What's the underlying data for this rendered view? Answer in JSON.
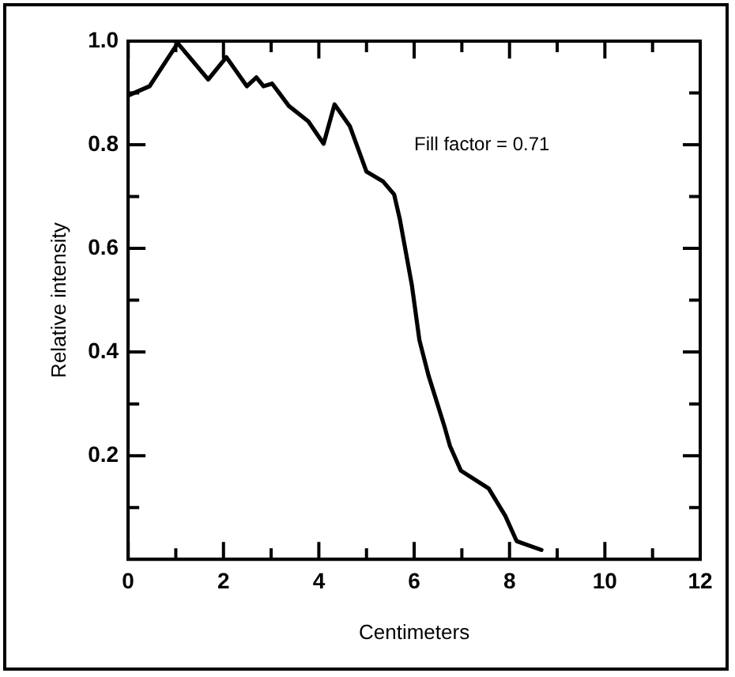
{
  "chart_data": {
    "type": "line",
    "xlabel": "Centimeters",
    "ylabel": "Relative intensity",
    "annotations": [
      "Fill factor = 0.71"
    ],
    "xlim": [
      0,
      12
    ],
    "ylim": [
      0,
      1
    ],
    "xticks": [
      0,
      {
        "value": 1,
        "label": null
      },
      2,
      {
        "value": 3,
        "label": null
      },
      4,
      {
        "value": 5,
        "label": null
      },
      6,
      {
        "value": 7,
        "label": null
      },
      8,
      {
        "value": 9,
        "label": null
      },
      10,
      {
        "value": 11,
        "label": null
      },
      12
    ],
    "yticks": [
      {
        "value": 0.1,
        "label": null
      },
      0.2,
      {
        "value": 0.3,
        "label": null
      },
      0.4,
      {
        "value": 0.5,
        "label": null
      },
      0.6,
      {
        "value": 0.7,
        "label": null
      },
      0.8,
      {
        "value": 0.9,
        "label": null
      },
      {
        "value": 1,
        "label": "1.0"
      }
    ],
    "grid": false,
    "legend": false,
    "marker": "none",
    "line_style": "solid",
    "series": [
      {
        "color": "#000000",
        "x": [
          0,
          0.45,
          1.04,
          1.68,
          2.06,
          2.49,
          2.69,
          2.84,
          3.02,
          3.16,
          3.37,
          3.78,
          4.1,
          4.33,
          4.65,
          5.0,
          5.35,
          5.58,
          5.7,
          5.95,
          6.11,
          6.3,
          6.63,
          6.75,
          6.98,
          7.56,
          7.91,
          8.15,
          8.67
        ],
        "values": [
          0.895,
          0.913,
          0.996,
          0.926,
          0.969,
          0.913,
          0.93,
          0.913,
          0.918,
          0.901,
          0.875,
          0.845,
          0.802,
          0.878,
          0.836,
          0.748,
          0.729,
          0.704,
          0.656,
          0.53,
          0.423,
          0.355,
          0.258,
          0.219,
          0.171,
          0.137,
          0.084,
          0.035,
          0.018
        ]
      }
    ]
  }
}
